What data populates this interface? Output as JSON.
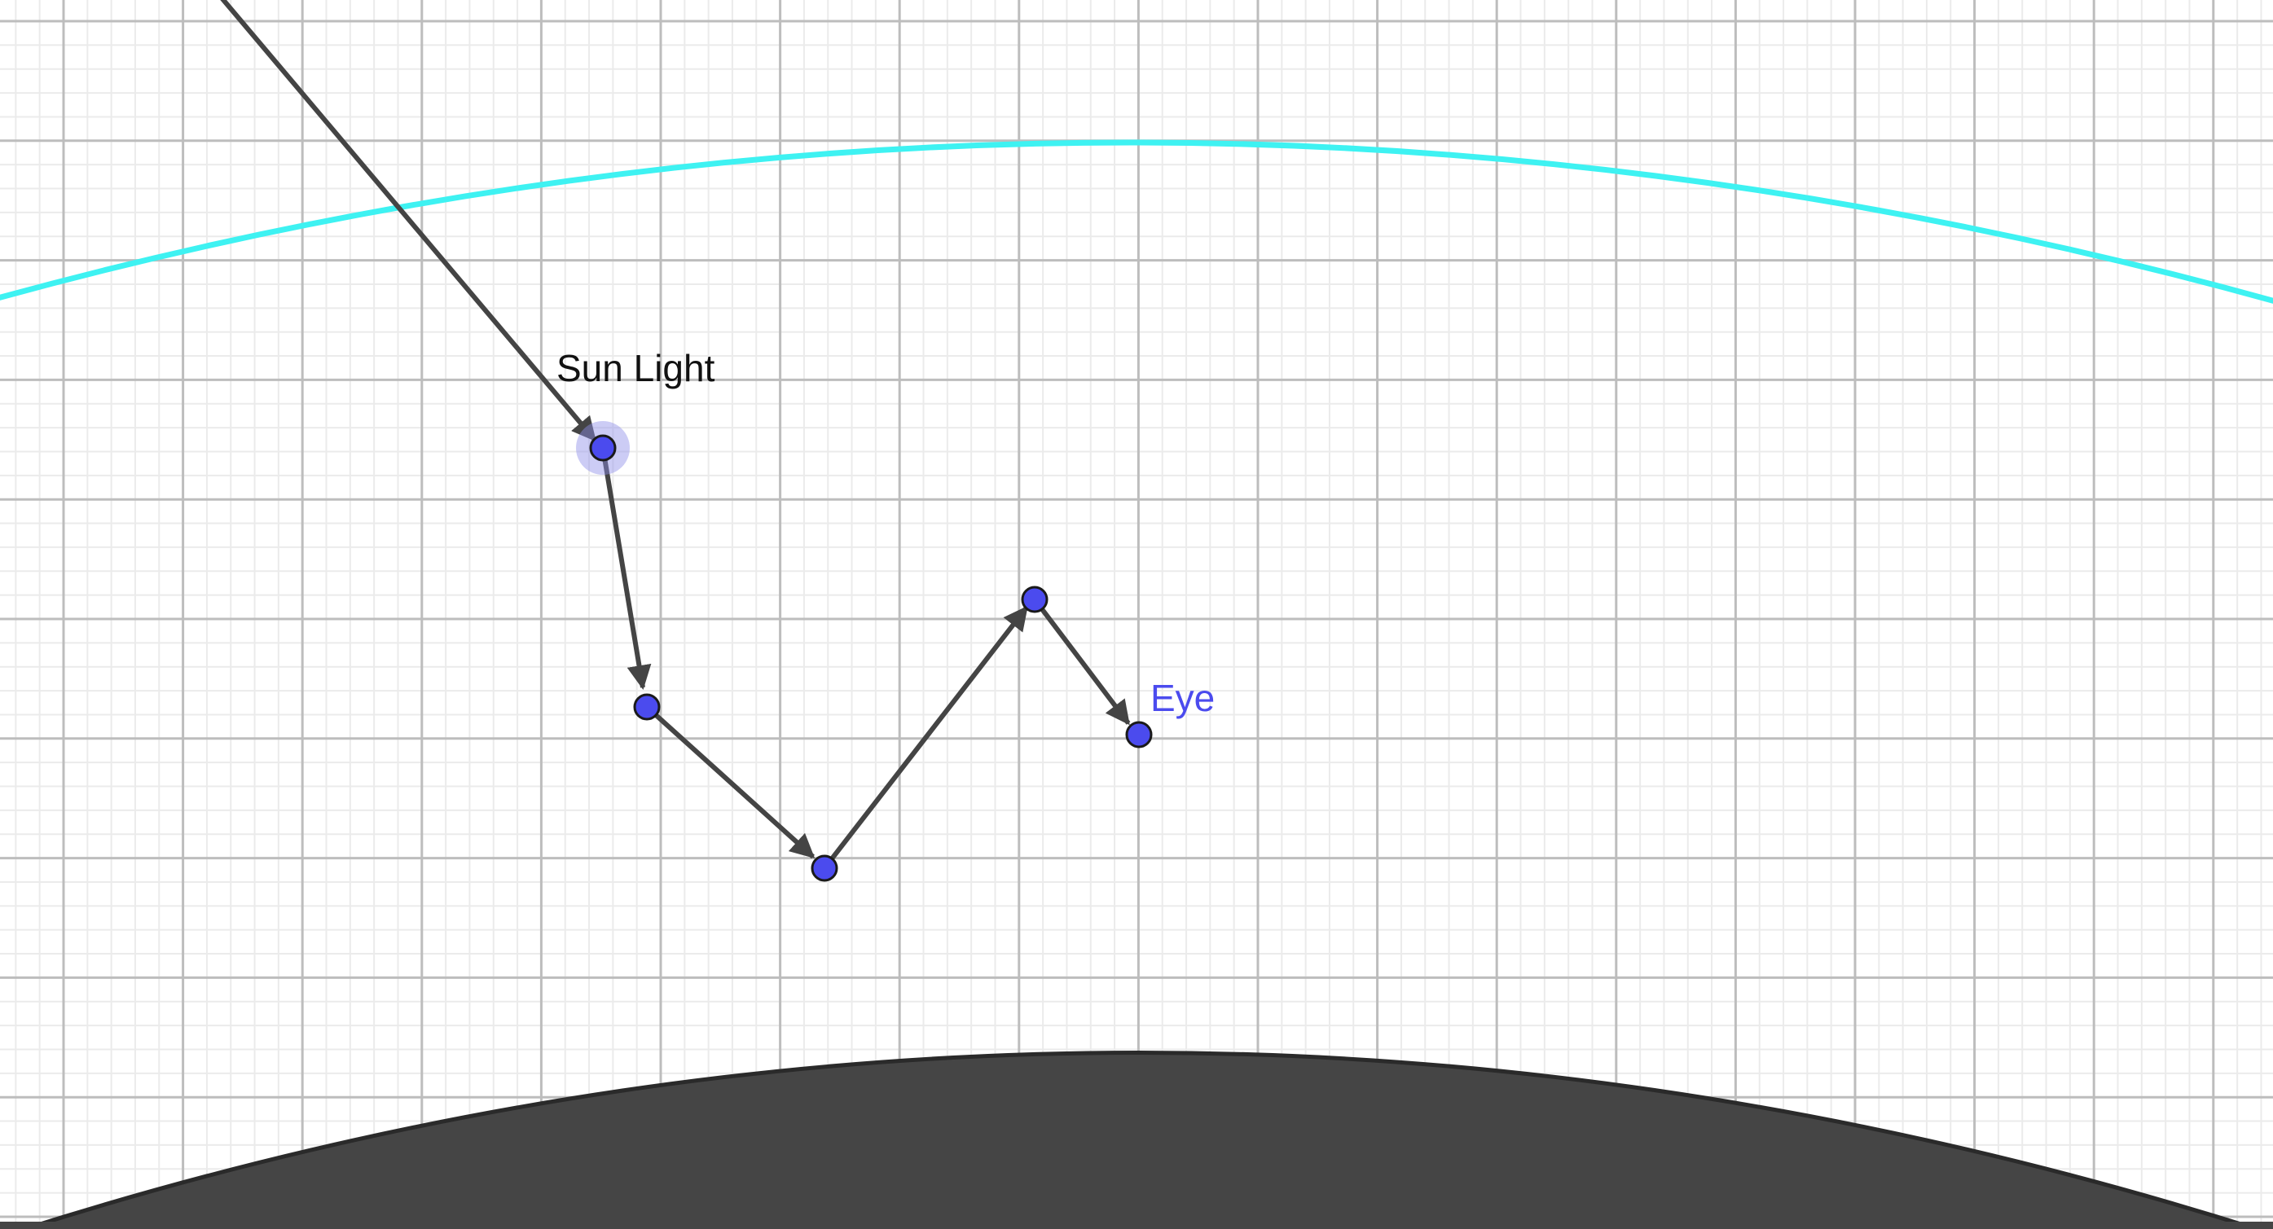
{
  "labels": {
    "sun_light": "Sun Light",
    "eye": "Eye"
  },
  "colors": {
    "background": "#ffffff",
    "grid_minor": "#ebebeb",
    "grid_major": "#bdbdbd",
    "atmosphere_arc": "#3ef2f2",
    "planet_fill": "#454545",
    "planet_stroke": "#2a2a2a",
    "ray": "#444444",
    "point_fill": "#4b4bee",
    "point_stroke": "#1a1a1a",
    "highlight_halo": "#8f8fe8",
    "sun_label": "#111111",
    "eye_label": "#4b4bee"
  },
  "icons": {
    "points": "circle",
    "arrowheads": "triangle"
  }
}
